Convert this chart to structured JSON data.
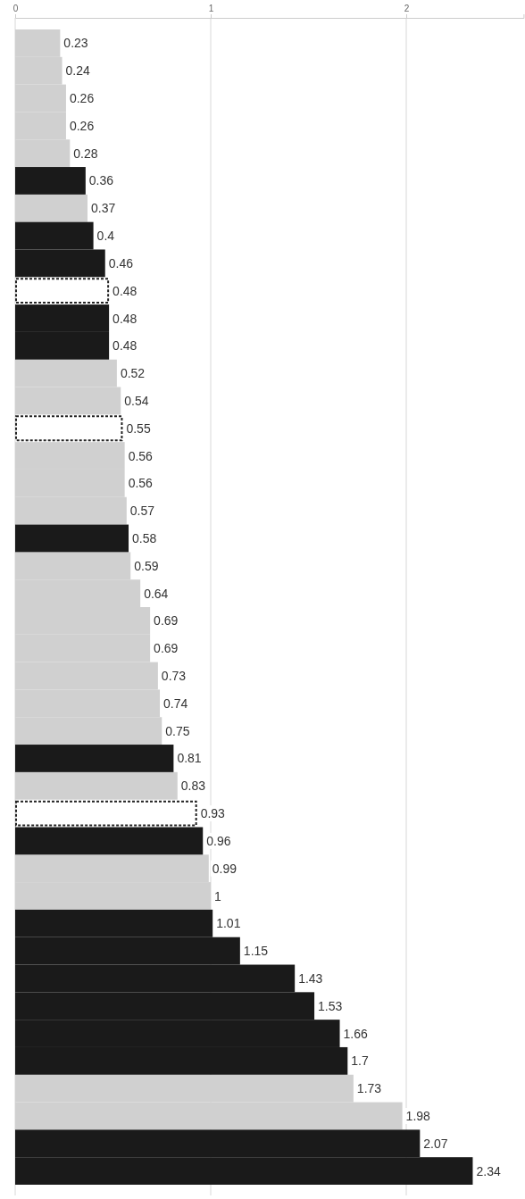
{
  "chart_data": {
    "type": "bar",
    "orientation": "horizontal",
    "data_labels": true,
    "grid": "x",
    "xlim": [
      0,
      2.6
    ],
    "xticks": [
      0,
      1,
      2
    ],
    "categories": [
      null,
      null,
      null,
      null,
      null,
      null,
      null,
      null,
      null,
      null,
      null,
      null,
      null,
      null,
      null,
      null,
      null,
      null,
      null,
      null,
      null,
      null,
      null,
      null,
      null,
      null,
      null,
      null,
      null,
      null,
      null,
      null,
      null,
      null,
      null,
      null,
      null,
      null,
      null,
      null,
      null,
      null
    ],
    "series": [
      {
        "color": "#d0d0d0",
        "values": [
          0.23,
          0.24,
          0.26,
          0.26,
          0.28,
          null,
          0.37,
          null,
          null,
          null,
          null,
          null,
          0.52,
          0.54,
          null,
          0.56,
          0.56,
          0.57,
          null,
          0.59,
          0.64,
          0.69,
          0.69,
          0.73,
          0.74,
          0.75,
          null,
          0.83,
          null,
          null,
          0.99,
          1,
          null,
          null,
          null,
          null,
          null,
          null,
          1.73,
          1.98,
          null,
          null
        ]
      },
      {
        "color": "#1a1a1a",
        "values": [
          null,
          null,
          null,
          null,
          null,
          0.36,
          null,
          0.4,
          0.46,
          null,
          0.48,
          0.48,
          null,
          null,
          null,
          null,
          null,
          null,
          0.58,
          null,
          null,
          null,
          null,
          null,
          null,
          null,
          0.81,
          null,
          null,
          0.96,
          null,
          null,
          1.01,
          1.15,
          1.43,
          1.53,
          1.66,
          1.7,
          null,
          null,
          2.07,
          2.34
        ]
      },
      {
        "color": "#ffffff",
        "line_style": "dashed",
        "values": [
          null,
          null,
          null,
          null,
          null,
          null,
          null,
          null,
          null,
          0.48,
          null,
          null,
          null,
          null,
          0.55,
          null,
          null,
          null,
          null,
          null,
          null,
          null,
          null,
          null,
          null,
          null,
          null,
          null,
          0.93,
          null,
          null,
          null,
          null,
          null,
          null,
          null,
          null,
          null,
          null,
          null,
          null,
          null
        ]
      }
    ]
  }
}
